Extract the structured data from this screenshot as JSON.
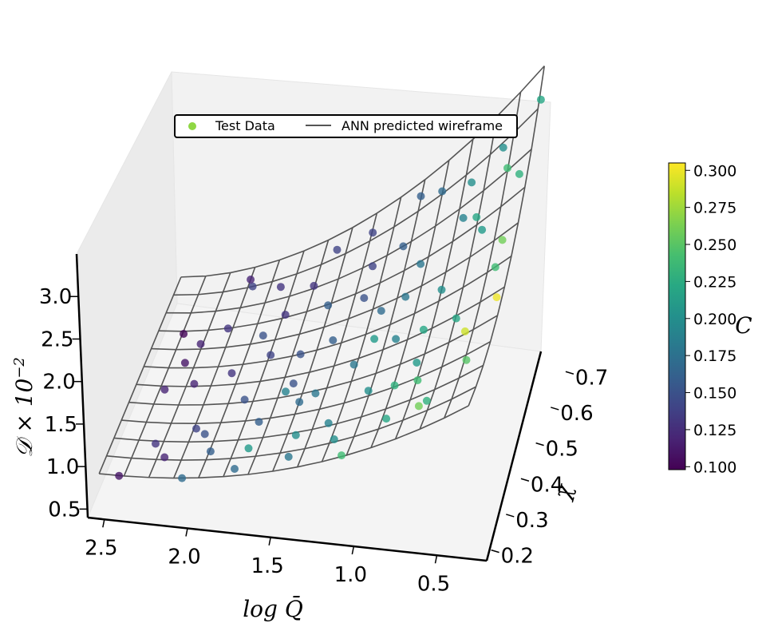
{
  "chart_data": {
    "type": "scatter",
    "projection": "3d",
    "legend": {
      "placement": "top-center",
      "entries": [
        {
          "label": "Test Data",
          "kind": "marker",
          "color": "#8fd744"
        },
        {
          "label": "ANN predicted wireframe",
          "kind": "line",
          "color": "#555555"
        }
      ]
    },
    "axes": {
      "x": {
        "label": "log Q̄",
        "label_latex": "\\log\\bar{Q}",
        "ticks": [
          2.5,
          2.0,
          1.5,
          1.0,
          0.5
        ],
        "range": [
          0.2,
          2.6
        ]
      },
      "y": {
        "label": "χ",
        "label_latex": "\\chi",
        "ticks": [
          0.2,
          0.3,
          0.4,
          0.5,
          0.6,
          0.7
        ],
        "range": [
          0.17,
          0.77
        ]
      },
      "z": {
        "label": "𝒟 × 10⁻²",
        "label_latex": "\\mathcal{D}\\times10^{-2}",
        "ticks": [
          0.5,
          1.0,
          1.5,
          2.0,
          2.5,
          3.0
        ],
        "range": [
          0.4,
          3.5
        ]
      }
    },
    "colorbar": {
      "label": "C",
      "colormap": "viridis",
      "ticks": [
        0.1,
        0.125,
        0.15,
        0.175,
        0.2,
        0.225,
        0.25,
        0.275,
        0.3
      ],
      "tick_labels": [
        "0.100",
        "0.125",
        "0.150",
        "0.175",
        "0.200",
        "0.225",
        "0.250",
        "0.275",
        "0.300"
      ],
      "range": [
        0.098,
        0.305
      ]
    },
    "grid": false,
    "series": [
      {
        "name": "Test Data",
        "type": "scatter",
        "x": [
          2.45,
          2.3,
          2.2,
          2.35,
          2.1,
          2.0,
          2.25,
          2.15,
          1.95,
          1.85,
          2.05,
          1.9,
          1.75,
          1.7,
          1.6,
          1.8,
          1.65,
          1.55,
          1.45,
          1.5,
          1.4,
          1.3,
          1.35,
          1.25,
          1.2,
          1.15,
          1.1,
          1.05,
          1.0,
          0.95,
          0.9,
          0.85,
          0.8,
          0.75,
          0.7,
          0.65,
          0.6,
          0.55,
          0.5,
          0.45,
          0.4,
          0.35,
          0.3,
          2.4,
          2.2,
          2.0,
          1.8,
          1.6,
          1.4,
          1.2,
          1.0,
          0.8,
          0.6,
          0.4,
          2.1,
          1.7,
          1.3,
          0.9,
          0.5,
          1.5,
          1.1,
          0.7,
          2.3,
          1.9,
          1.45,
          1.05,
          0.65,
          0.35,
          2.05,
          1.6,
          1.15,
          0.75,
          0.45
        ],
        "y": [
          0.22,
          0.3,
          0.25,
          0.42,
          0.35,
          0.48,
          0.55,
          0.62,
          0.28,
          0.4,
          0.68,
          0.58,
          0.22,
          0.33,
          0.45,
          0.52,
          0.65,
          0.7,
          0.25,
          0.38,
          0.5,
          0.6,
          0.72,
          0.3,
          0.42,
          0.55,
          0.65,
          0.35,
          0.48,
          0.6,
          0.7,
          0.25,
          0.4,
          0.52,
          0.62,
          0.3,
          0.45,
          0.58,
          0.68,
          0.35,
          0.5,
          0.62,
          0.72,
          0.6,
          0.45,
          0.3,
          0.62,
          0.5,
          0.38,
          0.28,
          0.55,
          0.45,
          0.6,
          0.55,
          0.72,
          0.26,
          0.66,
          0.36,
          0.4,
          0.58,
          0.22,
          0.68,
          0.5,
          0.7,
          0.3,
          0.72,
          0.25,
          0.45,
          0.2,
          0.4,
          0.5,
          0.35,
          0.65
        ],
        "c": [
          0.11,
          0.13,
          0.12,
          0.12,
          0.14,
          0.13,
          0.12,
          0.13,
          0.16,
          0.15,
          0.14,
          0.15,
          0.17,
          0.16,
          0.15,
          0.14,
          0.13,
          0.14,
          0.18,
          0.17,
          0.16,
          0.15,
          0.14,
          0.19,
          0.18,
          0.17,
          0.16,
          0.2,
          0.19,
          0.18,
          0.17,
          0.22,
          0.21,
          0.2,
          0.19,
          0.23,
          0.22,
          0.21,
          0.2,
          0.25,
          0.24,
          0.23,
          0.22,
          0.1,
          0.12,
          0.15,
          0.13,
          0.15,
          0.18,
          0.2,
          0.18,
          0.22,
          0.22,
          0.26,
          0.12,
          0.21,
          0.14,
          0.23,
          0.29,
          0.16,
          0.24,
          0.2,
          0.11,
          0.13,
          0.2,
          0.16,
          0.26,
          0.3,
          0.17,
          0.19,
          0.21,
          0.24,
          0.24
        ]
      },
      {
        "name": "ANN predicted wireframe",
        "type": "wireframe",
        "x_grid": [
          0.3,
          0.45,
          0.6,
          0.75,
          0.9,
          1.05,
          1.2,
          1.35,
          1.5,
          1.65,
          1.8,
          1.95,
          2.1,
          2.25,
          2.4,
          2.55
        ],
        "y_grid": [
          0.2,
          0.25,
          0.3,
          0.35,
          0.4,
          0.45,
          0.5,
          0.55,
          0.6,
          0.65,
          0.7,
          0.75
        ]
      }
    ]
  }
}
